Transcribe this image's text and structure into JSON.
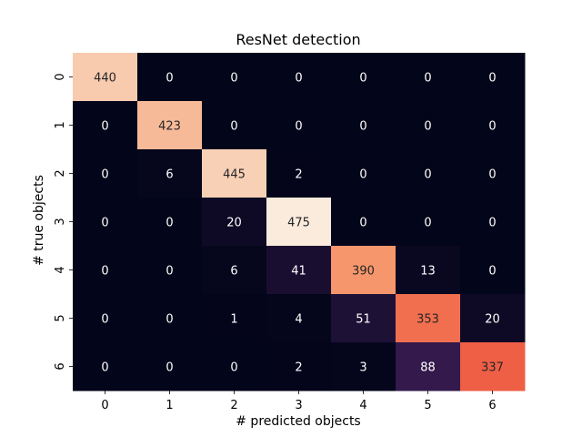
{
  "chart_data": {
    "type": "heatmap",
    "title": "ResNet detection",
    "xlabel": "# predicted objects",
    "ylabel": "# true objects",
    "x_categories": [
      "0",
      "1",
      "2",
      "3",
      "4",
      "5",
      "6"
    ],
    "y_categories": [
      "0",
      "1",
      "2",
      "3",
      "4",
      "5",
      "6"
    ],
    "values": [
      [
        440,
        0,
        0,
        0,
        0,
        0,
        0
      ],
      [
        0,
        423,
        0,
        0,
        0,
        0,
        0
      ],
      [
        0,
        6,
        445,
        2,
        0,
        0,
        0
      ],
      [
        0,
        0,
        20,
        475,
        0,
        0,
        0
      ],
      [
        0,
        0,
        6,
        41,
        390,
        13,
        0
      ],
      [
        0,
        0,
        1,
        4,
        51,
        353,
        20
      ],
      [
        0,
        0,
        0,
        2,
        3,
        88,
        337
      ]
    ],
    "value_range": [
      0,
      475
    ],
    "colormap": "rocket",
    "colorbar": false,
    "grid": false
  }
}
